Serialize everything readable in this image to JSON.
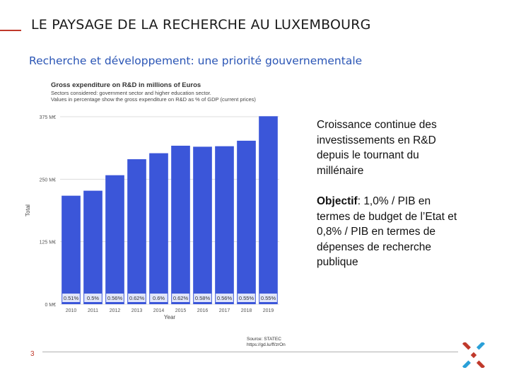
{
  "slide": {
    "title": "LE PAYSAGE DE LA RECHERCHE AU LUXEMBOURG",
    "subtitle": "Recherche et développement: une priorité gouvernementale",
    "page_number": "3",
    "text_para1": "Croissance continue des investissements en R&D depuis le tournant du millénaire",
    "text_objectif_label": "Objectif",
    "text_objectif_rest": ": 1,0% / PIB en termes de budget de l’Etat et 0,8% / PIB en termes de dépenses de recherche publique",
    "accent_red": "#c0392b",
    "accent_blue": "#2a55b5",
    "logo_icon": "luxembourg-cross-logo-icon"
  },
  "chart_data": {
    "type": "bar",
    "title": "Gross expenditure on R&D in millions of Euros",
    "subtitle_lines": [
      "Sectors considered: government sector and higher education sector.",
      "Values in percentage show the gross expenditure on R&D as % of GDP (current prices)"
    ],
    "xlabel": "Year",
    "ylabel": "Total",
    "ylim": [
      0,
      375
    ],
    "yticks": [
      0,
      125,
      250,
      375
    ],
    "ytick_labels": [
      "0 M€",
      "125 M€",
      "250 M€",
      "375 M€"
    ],
    "categories": [
      "2010",
      "2011",
      "2012",
      "2013",
      "2014",
      "2015",
      "2016",
      "2017",
      "2018",
      "2019"
    ],
    "values": [
      217,
      227,
      258,
      290,
      302,
      317,
      315,
      316,
      327,
      376
    ],
    "bar_labels": [
      "0.51%",
      "0.5%",
      "0.56%",
      "0.62%",
      "0.6%",
      "0.62%",
      "0.58%",
      "0.56%",
      "0.55%",
      "0.55%"
    ],
    "bar_color": "#3b56d9",
    "source_lines": [
      "Source: STATEC",
      "https://gd.lu/ff/zrOn"
    ]
  }
}
